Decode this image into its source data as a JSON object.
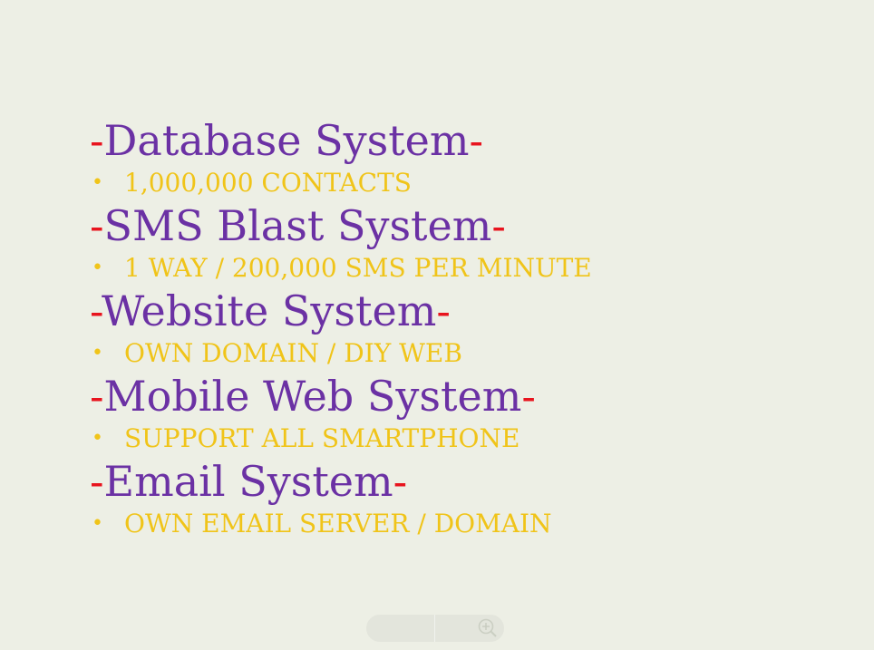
{
  "sections": [
    {
      "title": "Database System",
      "detail": "1,000,000 CONTACTS"
    },
    {
      "title": "SMS Blast System",
      "detail": "1 WAY / 200,000 SMS PER MINUTE"
    },
    {
      "title": "Website System",
      "detail": "OWN DOMAIN / DIY WEB"
    },
    {
      "title": "Mobile Web System",
      "detail": "SUPPORT ALL SMARTPHONE"
    },
    {
      "title": "Email System",
      "detail": "OWN EMAIL SERVER / DOMAIN"
    }
  ],
  "decor": {
    "dash": "-",
    "bullet": "•"
  },
  "colors": {
    "background": "#edefe5",
    "heading": "#6b31a4",
    "dash": "#e8141e",
    "detail": "#f0c419"
  },
  "icons": {
    "zoom_out": "zoom-out-icon",
    "zoom_in": "zoom-in-icon"
  }
}
